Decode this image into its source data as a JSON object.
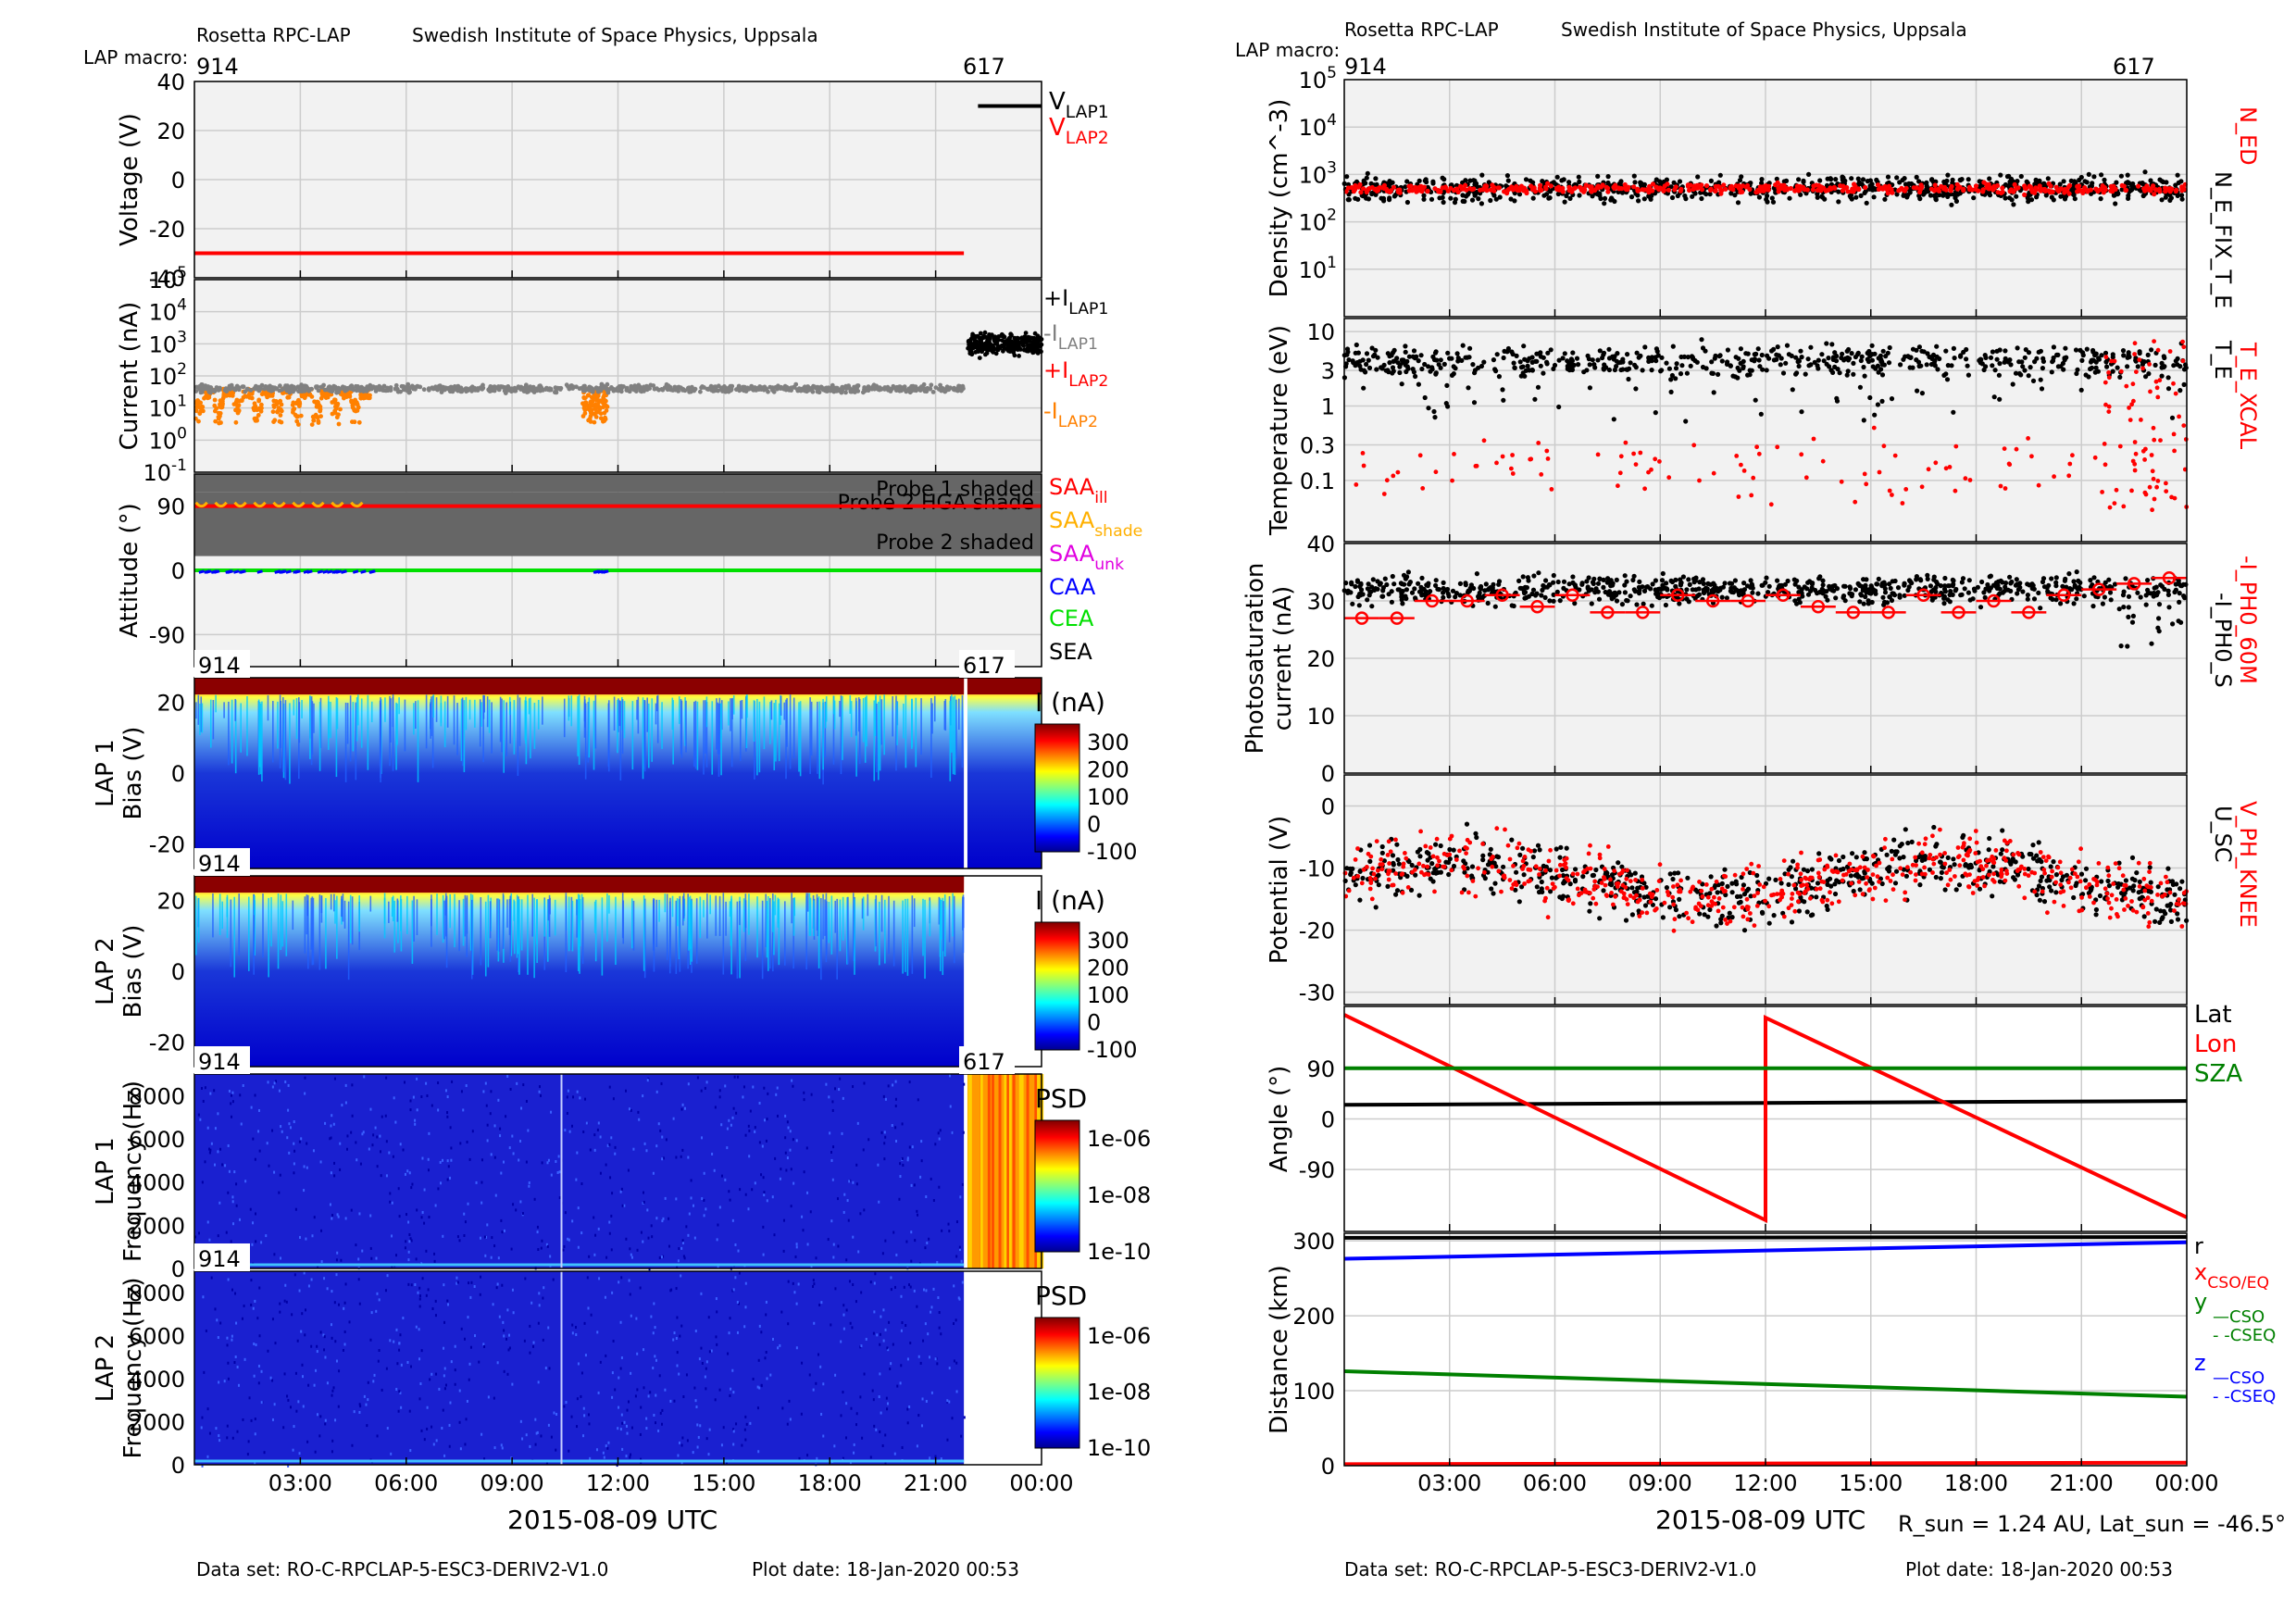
{
  "header": {
    "left_title": "Rosetta RPC-LAP",
    "left_institute": "Swedish Institute of Space Physics, Uppsala",
    "right_title": "Rosetta RPC-LAP",
    "right_institute": "Swedish Institute of Space Physics, Uppsala",
    "macro_label": "LAP macro:",
    "macro_start": "914",
    "macro_end": "617"
  },
  "footer": {
    "dataset_left": "Data set: RO-C-RPCLAP-5-ESC3-DERIV2-V1.0",
    "plotdate_left": "Plot date: 18-Jan-2020 00:53",
    "dataset_right": "Data set: RO-C-RPCLAP-5-ESC3-DERIV2-V1.0",
    "plotdate_right": "Plot date: 18-Jan-2020 00:53",
    "rsun_text": "R_sun = 1.24 AU, Lat_sun = -46.5°"
  },
  "x_axis": {
    "date_label": "2015-08-09 UTC",
    "tick_labels": [
      "03:00",
      "06:00",
      "09:00",
      "12:00",
      "15:00",
      "18:00",
      "21:00",
      "00:00"
    ],
    "range_hours": [
      0,
      24
    ]
  },
  "chart_data": [
    {
      "id": "voltage",
      "type": "line",
      "ylabel": "Voltage (V)",
      "ylim": [
        -40,
        40
      ],
      "yticks": [
        "40",
        "20",
        "0",
        "-20",
        "-40"
      ],
      "series": [
        {
          "name": "V_LAP1",
          "color": "#000000",
          "segments": [
            {
              "x": [
                22.2,
                24
              ],
              "y": [
                30,
                30
              ]
            }
          ]
        },
        {
          "name": "V_LAP2",
          "color": "#ff0000",
          "segments": [
            {
              "x": [
                0,
                21.8
              ],
              "y": [
                -30,
                -30
              ]
            }
          ]
        }
      ]
    },
    {
      "id": "current",
      "type": "scatter",
      "ylabel": "Current (nA)",
      "yscale": "log",
      "ylim": [
        0.1,
        100000
      ],
      "yticks": [
        "10^5",
        "10^4",
        "10^3",
        "10^2",
        "10^1",
        "10^0",
        "10^-1"
      ],
      "series": [
        {
          "name": "+I_LAP1",
          "color": "#000000",
          "x_range": [
            21.9,
            24
          ],
          "y_median": 1000
        },
        {
          "name": "-I_LAP1",
          "color": "#808080",
          "x_range": [
            0,
            21.8
          ],
          "y_median": 40
        },
        {
          "name": "+I_LAP2",
          "color": "#ff0000"
        },
        {
          "name": "-I_LAP2",
          "color": "#ff8000",
          "x_range": [
            0,
            5
          ],
          "y_median": 20
        }
      ]
    },
    {
      "id": "attitude",
      "type": "line",
      "ylabel": "Attitude (°)",
      "ylim": [
        -135,
        135
      ],
      "yticks": [
        "90",
        "0",
        "-90"
      ],
      "bands": [
        {
          "label": "Probe 1 shaded",
          "y": [
            110,
            135
          ]
        },
        {
          "label": "Probe 2 HGA shade",
          "y": [
            90,
            110
          ]
        },
        {
          "label": "Probe 2 shaded",
          "y": [
            20,
            90
          ]
        }
      ],
      "series": [
        {
          "name": "SAA_ill",
          "color": "#ff0000",
          "y": 90
        },
        {
          "name": "SAA_shade",
          "color": "#ffb000"
        },
        {
          "name": "SAA_unk",
          "color": "#e000e0"
        },
        {
          "name": "CAA",
          "color": "#0000ff"
        },
        {
          "name": "CEA",
          "color": "#00e000",
          "y": 0
        },
        {
          "name": "SEA",
          "color": "#000000"
        }
      ]
    },
    {
      "id": "lap1_bias",
      "type": "heatmap",
      "ylabel": "LAP 1 Bias (V)",
      "ylim": [
        -27,
        27
      ],
      "yticks": [
        "20",
        "0",
        "-20"
      ],
      "colorbar_label": "I (nA)",
      "colorbar_ticks": [
        "300",
        "200",
        "100",
        "0",
        "-100"
      ],
      "macros": [
        "914",
        "617"
      ]
    },
    {
      "id": "lap2_bias",
      "type": "heatmap",
      "ylabel": "LAP 2 Bias (V)",
      "ylim": [
        -27,
        27
      ],
      "yticks": [
        "20",
        "0",
        "-20"
      ],
      "colorbar_label": "I (nA)",
      "colorbar_ticks": [
        "300",
        "200",
        "100",
        "0",
        "-100"
      ],
      "macros": [
        "914"
      ]
    },
    {
      "id": "lap1_freq",
      "type": "heatmap",
      "ylabel": "LAP 1 Frequency (Hz)",
      "ylim": [
        0,
        9000
      ],
      "yticks": [
        "8000",
        "6000",
        "4000",
        "2000",
        "0"
      ],
      "colorbar_label": "PSD",
      "colorbar_ticks": [
        "1e-06",
        "1e-08",
        "1e-10"
      ],
      "macros": [
        "914",
        "617"
      ]
    },
    {
      "id": "lap2_freq",
      "type": "heatmap",
      "ylabel": "LAP 2 Frequency (Hz)",
      "ylim": [
        0,
        9000
      ],
      "yticks": [
        "8000",
        "6000",
        "4000",
        "2000",
        "0"
      ],
      "colorbar_label": "PSD",
      "colorbar_ticks": [
        "1e-06",
        "1e-08",
        "1e-10"
      ],
      "macros": [
        "914"
      ]
    },
    {
      "id": "density",
      "type": "scatter",
      "ylabel": "Density (cm^-3)",
      "yscale": "log",
      "ylim": [
        1,
        100000
      ],
      "yticks": [
        "10^5",
        "10^4",
        "10^3",
        "10^2",
        "10^1"
      ],
      "series": [
        {
          "name": "N_E_FIX_T_E",
          "color": "#000000",
          "y_median": 500
        },
        {
          "name": "N_ED",
          "color": "#ff0000",
          "y_median": 500
        }
      ]
    },
    {
      "id": "temperature",
      "type": "scatter",
      "ylabel": "Temperature (eV)",
      "yscale": "log",
      "ylim": [
        0.015,
        15
      ],
      "yticks": [
        "10",
        "3",
        "1",
        "0.3",
        "0.1"
      ],
      "series": [
        {
          "name": "T_E",
          "color": "#000000",
          "y_median": 4
        },
        {
          "name": "T_E_XCAL",
          "color": "#ff0000",
          "y_median": 0.15
        }
      ]
    },
    {
      "id": "photosaturation",
      "type": "scatter",
      "ylabel": "Photosaturation current (nA)",
      "ylim": [
        0,
        40
      ],
      "yticks": [
        "40",
        "30",
        "20",
        "10",
        "0"
      ],
      "series": [
        {
          "name": "-I_PH0_S",
          "color": "#000000",
          "y_median": 32
        },
        {
          "name": "-I_PH0_60M",
          "color": "#ff0000",
          "x": [
            0.5,
            1.5,
            2.5,
            3.5,
            4.5,
            5.5,
            6.5,
            7.5,
            8.5,
            9.5,
            10.5,
            11.5,
            12.5,
            13.5,
            14.5,
            15.5,
            16.5,
            17.5,
            18.5,
            19.5,
            20.5,
            21.5,
            22.5,
            23.5
          ],
          "y": [
            27,
            27,
            30,
            30,
            31,
            29,
            31,
            28,
            28,
            31,
            30,
            30,
            31,
            29,
            28,
            28,
            31,
            28,
            30,
            28,
            31,
            32,
            33,
            34
          ]
        }
      ]
    },
    {
      "id": "potential",
      "type": "scatter",
      "ylabel": "Potential (V)",
      "ylim": [
        -32,
        5
      ],
      "yticks": [
        "0",
        "-10",
        "-20",
        "-30"
      ],
      "series": [
        {
          "name": "U_SC",
          "color": "#000000",
          "y_median": -12
        },
        {
          "name": "V_PH_KNEE",
          "color": "#ff0000",
          "y_median": -12
        }
      ]
    },
    {
      "id": "angle",
      "type": "line",
      "ylabel": "Angle (°)",
      "ylim": [
        -200,
        200
      ],
      "yticks": [
        "90",
        "0",
        "-90"
      ],
      "series": [
        {
          "name": "Lat",
          "color": "#000000",
          "x": [
            0,
            24
          ],
          "y": [
            25,
            32
          ]
        },
        {
          "name": "Lon",
          "color": "#ff0000",
          "x": [
            0,
            12,
            12,
            24
          ],
          "y": [
            185,
            -180,
            180,
            -175
          ]
        },
        {
          "name": "SZA",
          "color": "#008000",
          "x": [
            0,
            24
          ],
          "y": [
            90,
            90
          ]
        }
      ]
    },
    {
      "id": "distance",
      "type": "line",
      "ylabel": "Distance (km)",
      "ylim": [
        0,
        310
      ],
      "yticks": [
        "300",
        "200",
        "100",
        "0"
      ],
      "series": [
        {
          "name": "r",
          "color": "#000000",
          "x": [
            0,
            24
          ],
          "y": [
            304,
            314
          ]
        },
        {
          "name": "x_CSO/EQ",
          "color": "#ff0000",
          "x": [
            0,
            24
          ],
          "y": [
            2,
            4
          ]
        },
        {
          "name": "y",
          "color": "#008000",
          "x": [
            0,
            24
          ],
          "y": [
            126,
            92
          ]
        },
        {
          "name": "z",
          "color": "#0000ff",
          "x": [
            0,
            24
          ],
          "y": [
            276,
            298
          ]
        }
      ],
      "legend_sub": [
        "—CSO",
        "- -CSEQ"
      ]
    }
  ]
}
